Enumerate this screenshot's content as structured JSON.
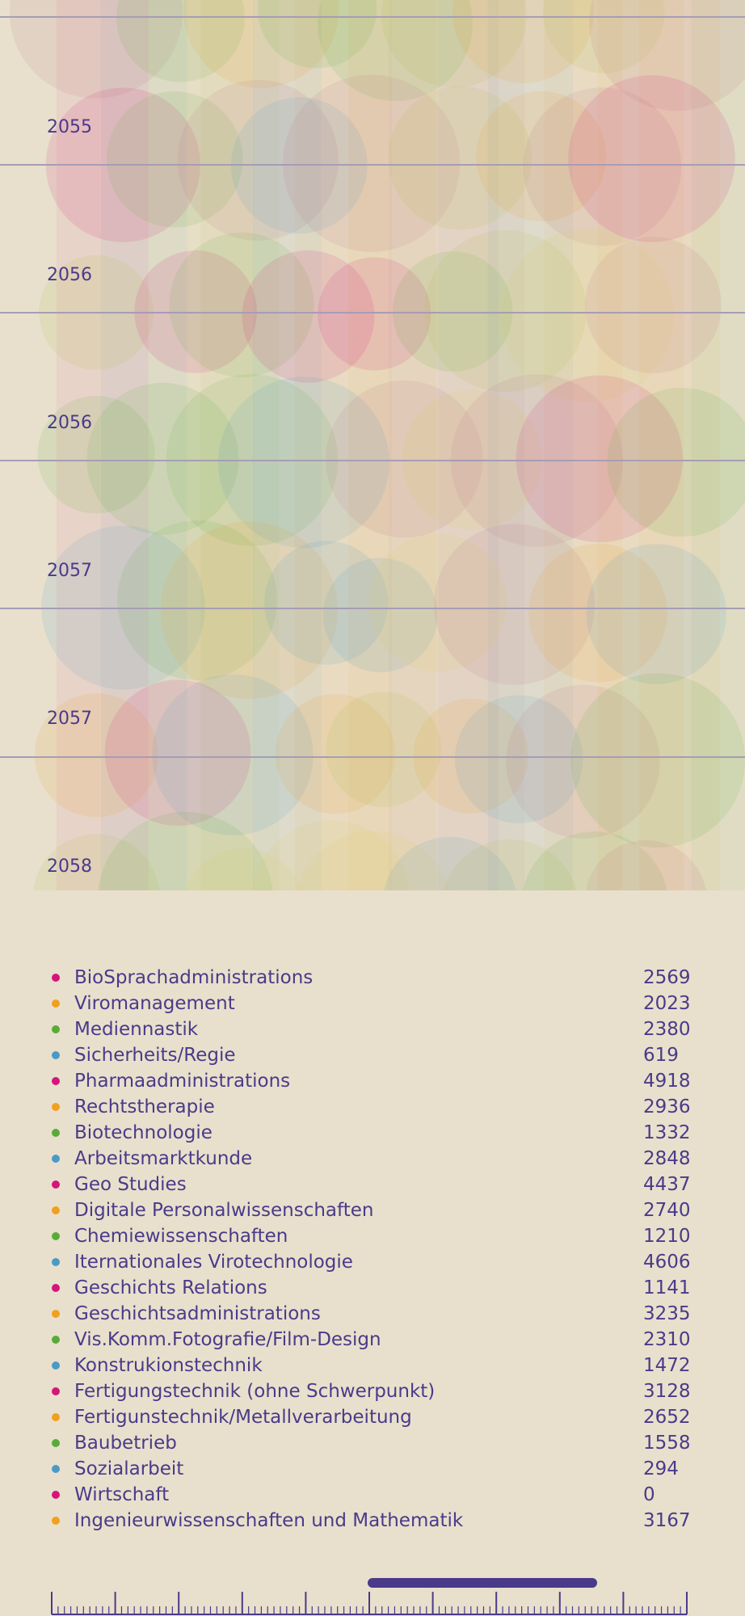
{
  "years": [
    "2055",
    "2056",
    "2056",
    "2057",
    "2057",
    "2058"
  ],
  "legend": [
    {
      "name": "BioSprachadministrations",
      "value": "2569",
      "color": "#d6157a"
    },
    {
      "name": "Viromanagement",
      "value": "2023",
      "color": "#f0a020"
    },
    {
      "name": "Mediennastik",
      "value": "2380",
      "color": "#5aaa3a"
    },
    {
      "name": "Sicherheits/Regie",
      "value": "619",
      "color": "#4a9ac8"
    },
    {
      "name": "Pharmaadministrations",
      "value": "4918",
      "color": "#d6157a"
    },
    {
      "name": "Rechtstherapie",
      "value": "2936",
      "color": "#f0a020"
    },
    {
      "name": "Biotechnologie",
      "value": "1332",
      "color": "#5aaa3a"
    },
    {
      "name": "Arbeitsmarktkunde",
      "value": "2848",
      "color": "#4a9ac8"
    },
    {
      "name": "Geo Studies",
      "value": "4437",
      "color": "#d6157a"
    },
    {
      "name": "Digitale Personalwissenschaften",
      "value": "2740",
      "color": "#f0a020"
    },
    {
      "name": "Chemiewissenschaften",
      "value": "1210",
      "color": "#5aaa3a"
    },
    {
      "name": "Iternationales Virotechnologie",
      "value": "4606",
      "color": "#4a9ac8"
    },
    {
      "name": "Geschichts Relations",
      "value": "1141",
      "color": "#d6157a"
    },
    {
      "name": "Geschichtsadministrations",
      "value": "3235",
      "color": "#f0a020"
    },
    {
      "name": "Vis.Komm.Fotografie/Film-Design",
      "value": "2310",
      "color": "#5aaa3a"
    },
    {
      "name": "Konstrukionstechnik",
      "value": "1472",
      "color": "#4a9ac8"
    },
    {
      "name": "Fertigungstechnik (ohne Schwerpunkt)",
      "value": "3128",
      "color": "#d6157a"
    },
    {
      "name": "Fertigunstechnik/Metallverarbeitung",
      "value": "2652",
      "color": "#f0a020"
    },
    {
      "name": "Baubetrieb",
      "value": "1558",
      "color": "#5aaa3a"
    },
    {
      "name": "Sozialarbeit",
      "value": "294",
      "color": "#4a9ac8"
    },
    {
      "name": "Wirtschaft",
      "value": "0",
      "color": "#d6157a"
    },
    {
      "name": "Ingenieurwissenschaften und Mathematik",
      "value": "3167",
      "color": "#f0a020"
    }
  ],
  "colors": {
    "background": "#e8e0cc",
    "text": "#4a3a8a",
    "scrubber": "#4a3a8a",
    "gridline": "#a69db5"
  }
}
